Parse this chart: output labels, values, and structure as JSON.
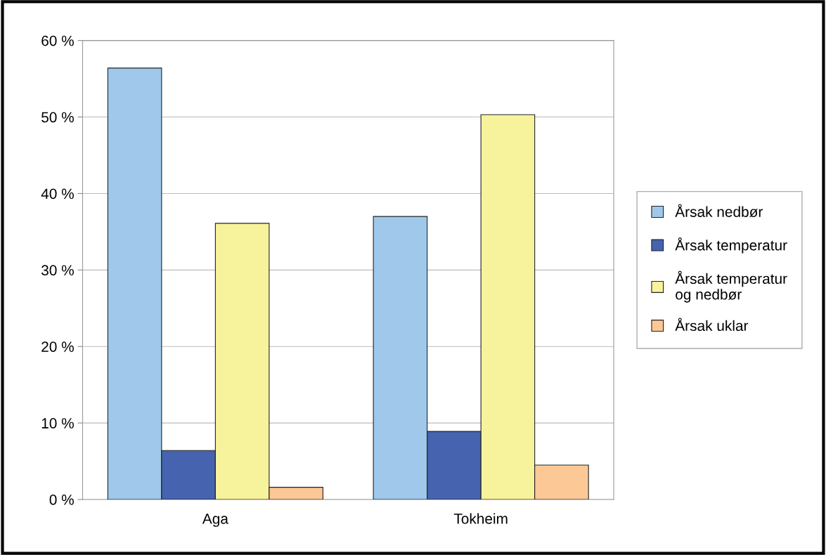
{
  "chart_data": {
    "type": "bar",
    "categories": [
      "Aga",
      "Tokheim"
    ],
    "series": [
      {
        "name": "Årsak nedbør",
        "color": "#9fc8ea",
        "values": [
          56.4,
          37.0
        ]
      },
      {
        "name": "Årsak temperatur",
        "color": "#4563ae",
        "values": [
          6.4,
          8.9
        ]
      },
      {
        "name": "Årsak temperatur\nog nedbør",
        "color": "#f7f29c",
        "values": [
          36.1,
          50.3
        ]
      },
      {
        "name": "Årsak uklar",
        "color": "#fbc896",
        "values": [
          1.6,
          4.5
        ]
      }
    ],
    "ylim": [
      0,
      60
    ],
    "yticks": [
      {
        "value": 0,
        "label": "0 %"
      },
      {
        "value": 10,
        "label": "10 %"
      },
      {
        "value": 20,
        "label": "20 %"
      },
      {
        "value": 30,
        "label": "30 %"
      },
      {
        "value": 40,
        "label": "40 %"
      },
      {
        "value": 50,
        "label": "50 %"
      },
      {
        "value": 60,
        "label": "60 %"
      }
    ],
    "grid": "y",
    "legend": "right"
  }
}
